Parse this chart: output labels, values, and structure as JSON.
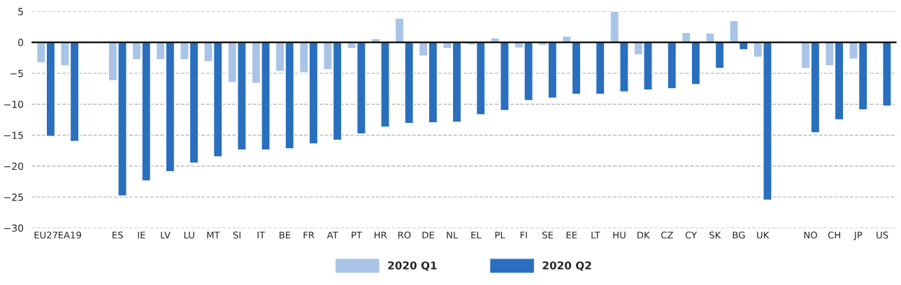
{
  "chart_data": {
    "type": "bar",
    "categories": [
      "EU27",
      "EA19",
      null,
      "ES",
      "IE",
      "LV",
      "LU",
      "MT",
      "SI",
      "IT",
      "BE",
      "FR",
      "AT",
      "PT",
      "HR",
      "RO",
      "DE",
      "NL",
      "EL",
      "PL",
      "FI",
      "SE",
      "EE",
      "LT",
      "HU",
      "DK",
      "CZ",
      "CY",
      "SK",
      "BG",
      "UK",
      null,
      "NO",
      "CH",
      "JP",
      "US"
    ],
    "series": [
      {
        "name": "2020 Q1",
        "color": "#a9c4e6",
        "values": [
          -3.3,
          -3.8,
          null,
          -6.2,
          -2.8,
          -2.8,
          -2.8,
          -3.1,
          -6.5,
          -6.6,
          -4.7,
          -4.9,
          -4.4,
          -1.0,
          0.6,
          3.9,
          -2.2,
          -1.0,
          -0.4,
          0.7,
          -0.9,
          -0.5,
          1.0,
          null,
          5.0,
          -2.0,
          null,
          1.6,
          1.5,
          3.5,
          -2.4,
          null,
          -4.2,
          -3.8,
          -2.7,
          null
        ]
      },
      {
        "name": "2020 Q2",
        "color": "#2a6fbe",
        "values": [
          -15.2,
          -16.0,
          null,
          -24.8,
          -22.4,
          -20.9,
          -19.5,
          -18.5,
          -17.4,
          -17.4,
          -17.2,
          -16.4,
          -15.8,
          -14.8,
          -13.7,
          -13.1,
          -13.0,
          -12.9,
          -11.7,
          -11.0,
          -9.4,
          -9.0,
          -8.4,
          -8.4,
          -8.0,
          -7.7,
          -7.5,
          -6.8,
          -4.2,
          -1.2,
          -25.5,
          null,
          -14.6,
          -12.5,
          -10.9,
          -10.3
        ]
      }
    ],
    "ylim": [
      -30,
      5
    ],
    "yticks": [
      {
        "value": -30,
        "label": "−30"
      },
      {
        "value": -25,
        "label": "−25"
      },
      {
        "value": -20,
        "label": "−20"
      },
      {
        "value": -15,
        "label": "−15"
      },
      {
        "value": -10,
        "label": "−10"
      },
      {
        "value": -5,
        "label": "−5"
      },
      0,
      5
    ],
    "ref_lines": [
      {
        "axis": "y",
        "value": 0,
        "color": "#000000",
        "line_style": "solid"
      }
    ],
    "grid": "y",
    "legend": "bottom"
  }
}
